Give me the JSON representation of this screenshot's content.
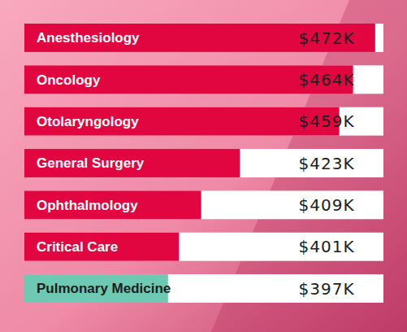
{
  "chart_data": {
    "type": "bar",
    "orientation": "horizontal",
    "categories": [
      "Anesthesiology",
      "Oncology",
      "Otolaryngology",
      "General Surgery",
      "Ophthalmology",
      "Critical Care",
      "Pulmonary Medicine"
    ],
    "values": [
      472,
      464,
      459,
      423,
      409,
      401,
      397
    ],
    "value_labels": [
      "$472K",
      "$464K",
      "$459K",
      "$423K",
      "$409K",
      "$401K",
      "$397K"
    ],
    "colors": [
      "#e1063f",
      "#e1063f",
      "#e1063f",
      "#e1063f",
      "#e1063f",
      "#e1063f",
      "#6dc9b2"
    ],
    "xlim": [
      345,
      475
    ],
    "data_labels": true,
    "tick_labels": false
  }
}
